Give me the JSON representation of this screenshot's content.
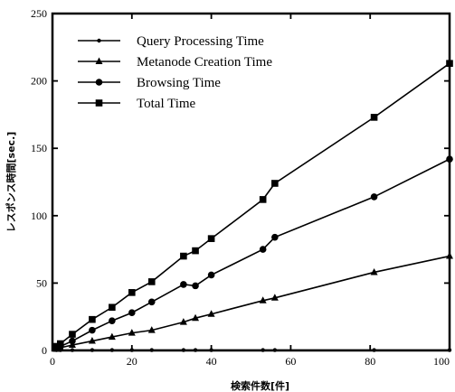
{
  "chart_data": {
    "type": "line",
    "title": "",
    "xlabel": "検索件数[件]",
    "ylabel": "レスポンス時間[sec.]",
    "xlim": [
      0,
      100
    ],
    "ylim": [
      0,
      250
    ],
    "xticks": [
      "0",
      "20",
      "40",
      "60",
      "80",
      "100"
    ],
    "yticks": [
      "0",
      "50",
      "100",
      "150",
      "200",
      "250"
    ],
    "grid": false,
    "legend_position": "top-left",
    "series": [
      {
        "name": "Query Processing Time",
        "marker": "small-circle",
        "x": [
          1,
          2,
          5,
          10,
          15,
          20,
          25,
          33,
          36,
          40,
          53,
          56,
          81,
          100
        ],
        "y": [
          0.3,
          0.3,
          0.3,
          0.3,
          0.3,
          0.3,
          0.3,
          0.3,
          0.3,
          0.3,
          0.3,
          0.3,
          0.3,
          0.3
        ]
      },
      {
        "name": "Metanode Creation Time",
        "marker": "triangle",
        "x": [
          1,
          2,
          5,
          10,
          15,
          20,
          25,
          33,
          36,
          40,
          53,
          56,
          81,
          100
        ],
        "y": [
          1,
          2,
          4,
          7,
          10,
          13,
          15,
          21,
          24,
          27,
          37,
          39,
          58,
          70
        ]
      },
      {
        "name": "Browsing Time",
        "marker": "circle",
        "x": [
          1,
          2,
          5,
          10,
          15,
          20,
          25,
          33,
          36,
          40,
          53,
          56,
          81,
          100
        ],
        "y": [
          2,
          3,
          7,
          15,
          22,
          28,
          36,
          49,
          48,
          56,
          75,
          84,
          114,
          142
        ]
      },
      {
        "name": "Total Time",
        "marker": "square",
        "x": [
          1,
          2,
          5,
          10,
          15,
          20,
          25,
          33,
          36,
          40,
          53,
          56,
          81,
          100
        ],
        "y": [
          3,
          5,
          12,
          23,
          32,
          43,
          51,
          70,
          74,
          83,
          112,
          124,
          173,
          213
        ]
      }
    ]
  }
}
